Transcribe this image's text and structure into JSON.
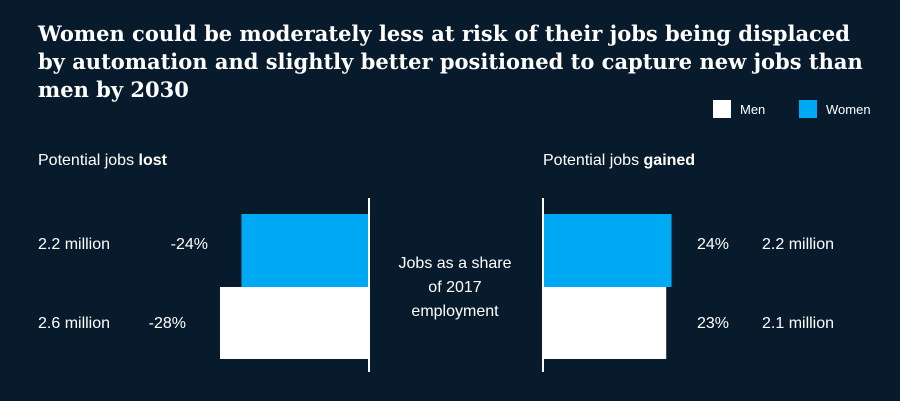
{
  "chart_data": {
    "type": "bar",
    "title": "Women could be moderately less at risk of their jobs being displaced by automation and slightly better positioned to capture new jobs than men by 2030",
    "center_label": "Jobs as a share of 2017 employment",
    "legend": [
      {
        "name": "Men",
        "color": "#ffffff"
      },
      {
        "name": "Women",
        "color": "#00a9f4"
      }
    ],
    "panels": [
      {
        "title_prefix": "Potential jobs ",
        "title_bold": "lost",
        "series": [
          {
            "name": "Women",
            "value": -24,
            "value_label": "-24%",
            "jobs_label": "2.2 million",
            "color": "#00a9f4"
          },
          {
            "name": "Men",
            "value": -28,
            "value_label": "-28%",
            "jobs_label": "2.6 million",
            "color": "#ffffff"
          }
        ]
      },
      {
        "title_prefix": "Potential jobs ",
        "title_bold": "gained",
        "series": [
          {
            "name": "Women",
            "value": 24,
            "value_label": "24%",
            "jobs_label": "2.2 million",
            "color": "#00a9f4"
          },
          {
            "name": "Men",
            "value": 23,
            "value_label": "23%",
            "jobs_label": "2.1 million",
            "color": "#ffffff"
          }
        ]
      }
    ]
  }
}
